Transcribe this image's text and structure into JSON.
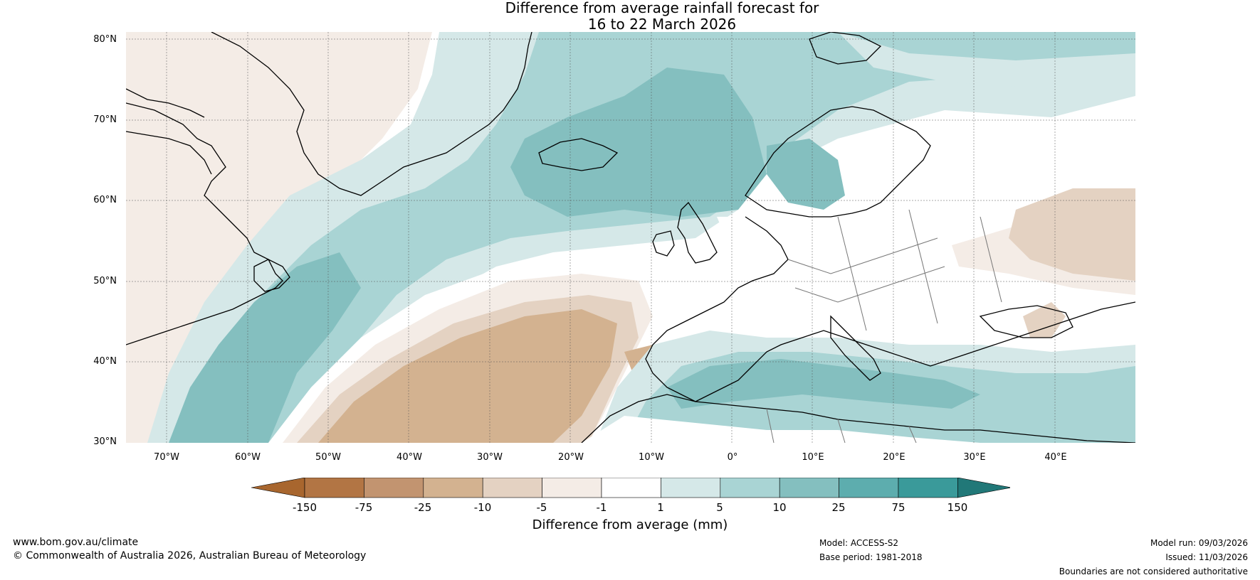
{
  "title": {
    "line1": "Difference from average rainfall forecast for",
    "line2": "16 to 22 March 2026"
  },
  "latitude_labels": [
    "80°N",
    "70°N",
    "60°N",
    "50°N",
    "40°N",
    "30°N"
  ],
  "longitude_labels": [
    "70°W",
    "60°W",
    "50°W",
    "40°W",
    "30°W",
    "20°W",
    "10°W",
    "0°",
    "10°E",
    "20°E",
    "30°E",
    "40°E"
  ],
  "colorbar": {
    "ticks": [
      "-150",
      "-75",
      "-25",
      "-10",
      "-5",
      "-1",
      "1",
      "5",
      "10",
      "25",
      "75",
      "150"
    ],
    "label": "Difference from average (mm)",
    "colors": [
      "#a8662e",
      "#b27544",
      "#c29470",
      "#d3b290",
      "#e4d2c2",
      "#f4ece6",
      "#ffffff",
      "#d5e8e8",
      "#a9d4d4",
      "#84bfbf",
      "#5dadae",
      "#3a9a9a",
      "#217878"
    ]
  },
  "footer": {
    "website": "www.bom.gov.au/climate",
    "copyright": "© Commonwealth of Australia 2026, Australian Bureau of Meteorology",
    "model": "Model: ACCESS-S2",
    "base_period": "Base period: 1981-2018",
    "model_run": "Model run: 09/03/2026",
    "issued": "Issued: 11/03/2026",
    "boundaries_note": "Boundaries are not considered authoritative"
  }
}
